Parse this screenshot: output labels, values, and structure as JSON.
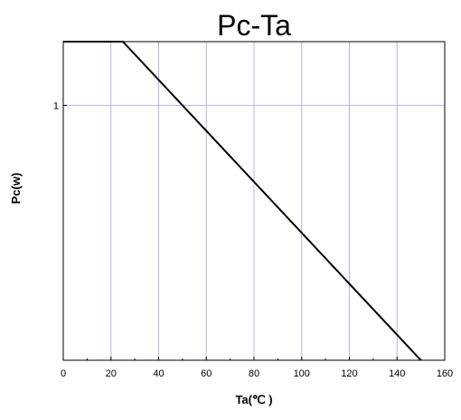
{
  "chart_data": {
    "type": "line",
    "title": "Pc-Ta",
    "xlabel": "Ta(℃ )",
    "ylabel": "Pc(w)",
    "xlim": [
      0,
      160
    ],
    "ylim": [
      0,
      1.25
    ],
    "x_ticks": [
      0,
      20,
      40,
      60,
      80,
      100,
      120,
      140,
      160
    ],
    "x_tick_labels": [
      "0",
      "20",
      "40",
      "60",
      "80",
      "100",
      "120",
      "140",
      "160"
    ],
    "y_ticks": [
      1
    ],
    "y_tick_labels": [
      "1"
    ],
    "grid": true,
    "legend": "none",
    "series": [
      {
        "x": [
          0,
          25,
          150
        ],
        "y": [
          1.25,
          1.25,
          0
        ]
      }
    ],
    "colors": {
      "line": "#000000",
      "grid": "#b4b4e6",
      "frame": "#000000"
    }
  }
}
